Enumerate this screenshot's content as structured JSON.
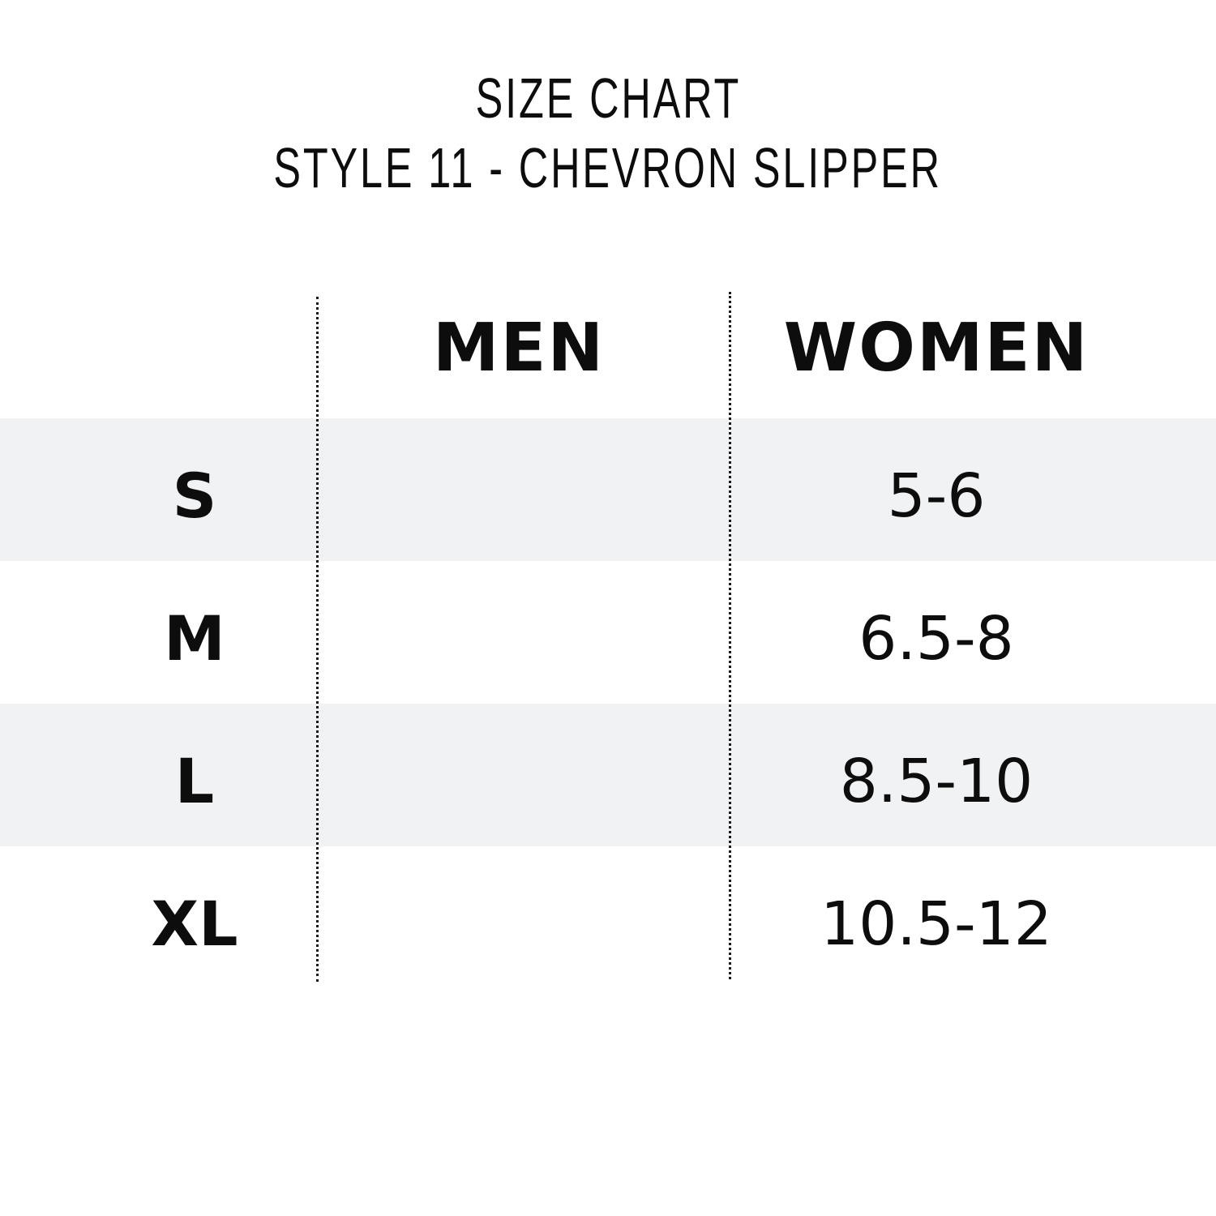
{
  "title": {
    "line1": "SIZE CHART",
    "line2": "STYLE 11 - CHEVRON SLIPPER"
  },
  "table": {
    "columns": [
      "",
      "MEN",
      "WOMEN"
    ],
    "rows": [
      {
        "size": "S",
        "men": "",
        "women": "5-6"
      },
      {
        "size": "M",
        "men": "",
        "women": "6.5-8"
      },
      {
        "size": "L",
        "men": "",
        "women": "8.5-10"
      },
      {
        "size": "XL",
        "men": "",
        "women": "10.5-12"
      }
    ],
    "stripe_color": "#f1f2f4"
  }
}
